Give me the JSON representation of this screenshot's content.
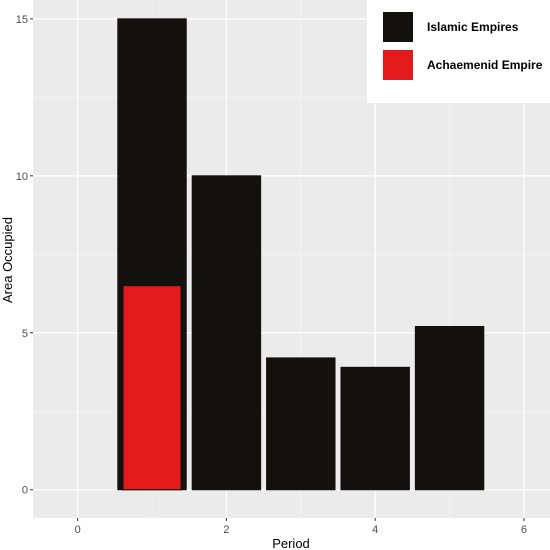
{
  "chart_data": {
    "type": "bar",
    "title": "",
    "xlabel": "Period",
    "ylabel": "Area Occupied",
    "xlim": [
      -0.6,
      6.35
    ],
    "ylim": [
      -0.9,
      15.6
    ],
    "x_ticks": [
      0,
      2,
      4,
      6
    ],
    "y_ticks": [
      0,
      5,
      10,
      15
    ],
    "grid": true,
    "legend_position": "top-right",
    "series": [
      {
        "name": "Islamic Empires",
        "color": "#12110d",
        "points": [
          {
            "x": 1,
            "y": 15.0
          },
          {
            "x": 2,
            "y": 10.0
          },
          {
            "x": 3,
            "y": 4.2
          },
          {
            "x": 4,
            "y": 3.9
          },
          {
            "x": 5,
            "y": 5.2
          }
        ]
      },
      {
        "name": "Achaemenid Empire",
        "color": "#e31a1c",
        "points": [
          {
            "x": 1,
            "y": 6.5
          }
        ]
      }
    ]
  }
}
